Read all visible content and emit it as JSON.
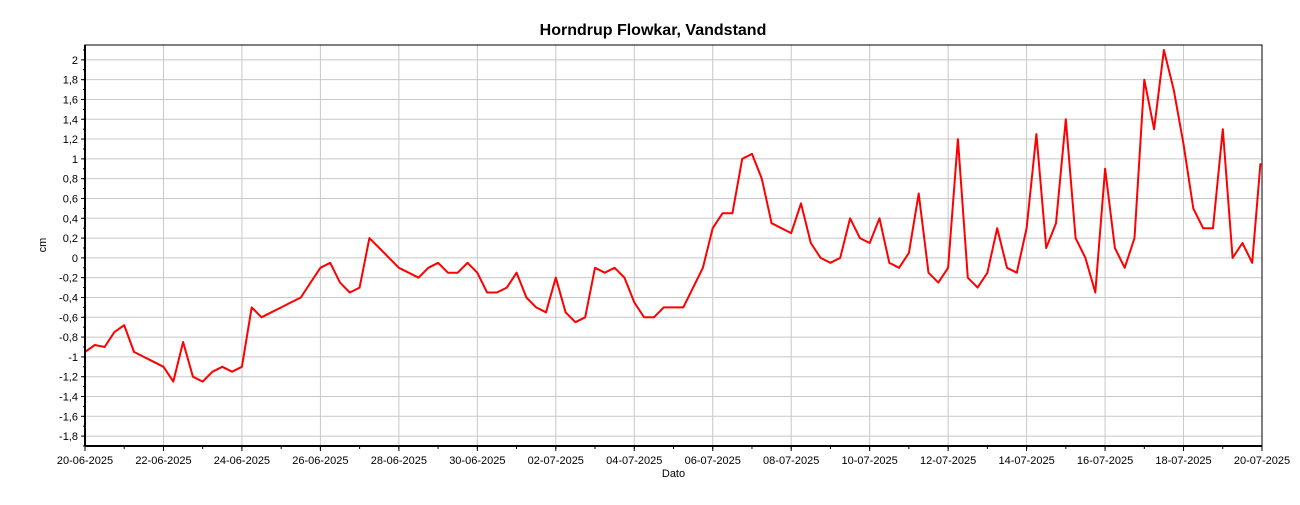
{
  "chart_data": {
    "type": "line",
    "title": "Horndrup Flowkar, Vandstand",
    "xlabel": "Dato",
    "ylabel": "cm",
    "ylim": [
      -1.9,
      2.15
    ],
    "xlim": [
      "2025-06-20",
      "2025-07-20"
    ],
    "grid": true,
    "legend": "none",
    "yticks": [
      "2",
      "1,8",
      "1,6",
      "1,4",
      "1,2",
      "1",
      "0,8",
      "0,6",
      "0,4",
      "0,2",
      "0",
      "-0,2",
      "-0,4",
      "-0,6",
      "-0,8",
      "-1",
      "-1,2",
      "-1,4",
      "-1,6",
      "-1,8"
    ],
    "xticks": [
      "20-06-2025",
      "22-06-2025",
      "24-06-2025",
      "26-06-2025",
      "28-06-2025",
      "30-06-2025",
      "02-07-2025",
      "04-07-2025",
      "06-07-2025",
      "08-07-2025",
      "10-07-2025",
      "12-07-2025",
      "14-07-2025",
      "16-07-2025",
      "18-07-2025",
      "20-07-2025"
    ],
    "series": [
      {
        "color": "#ff0000",
        "points": [
          [
            "2025-06-20 00:00",
            -0.95
          ],
          [
            "2025-06-20 06:00",
            -0.88
          ],
          [
            "2025-06-20 12:00",
            -0.9
          ],
          [
            "2025-06-20 18:00",
            -0.75
          ],
          [
            "2025-06-21 00:00",
            -0.68
          ],
          [
            "2025-06-21 06:00",
            -0.95
          ],
          [
            "2025-06-21 12:00",
            -1.0
          ],
          [
            "2025-06-21 18:00",
            -1.05
          ],
          [
            "2025-06-22 00:00",
            -1.1
          ],
          [
            "2025-06-22 06:00",
            -1.25
          ],
          [
            "2025-06-22 12:00",
            -0.85
          ],
          [
            "2025-06-22 18:00",
            -1.2
          ],
          [
            "2025-06-23 00:00",
            -1.25
          ],
          [
            "2025-06-23 06:00",
            -1.15
          ],
          [
            "2025-06-23 12:00",
            -1.1
          ],
          [
            "2025-06-23 18:00",
            -1.15
          ],
          [
            "2025-06-24 00:00",
            -1.1
          ],
          [
            "2025-06-24 06:00",
            -0.5
          ],
          [
            "2025-06-24 12:00",
            -0.6
          ],
          [
            "2025-06-24 18:00",
            -0.55
          ],
          [
            "2025-06-25 00:00",
            -0.5
          ],
          [
            "2025-06-25 06:00",
            -0.45
          ],
          [
            "2025-06-25 12:00",
            -0.4
          ],
          [
            "2025-06-25 18:00",
            -0.25
          ],
          [
            "2025-06-26 00:00",
            -0.1
          ],
          [
            "2025-06-26 06:00",
            -0.05
          ],
          [
            "2025-06-26 12:00",
            -0.25
          ],
          [
            "2025-06-26 18:00",
            -0.35
          ],
          [
            "2025-06-27 00:00",
            -0.3
          ],
          [
            "2025-06-27 06:00",
            0.2
          ],
          [
            "2025-06-27 12:00",
            0.1
          ],
          [
            "2025-06-27 18:00",
            0.0
          ],
          [
            "2025-06-28 00:00",
            -0.1
          ],
          [
            "2025-06-28 06:00",
            -0.15
          ],
          [
            "2025-06-28 12:00",
            -0.2
          ],
          [
            "2025-06-28 18:00",
            -0.1
          ],
          [
            "2025-06-29 00:00",
            -0.05
          ],
          [
            "2025-06-29 06:00",
            -0.15
          ],
          [
            "2025-06-29 12:00",
            -0.15
          ],
          [
            "2025-06-29 18:00",
            -0.05
          ],
          [
            "2025-06-30 00:00",
            -0.15
          ],
          [
            "2025-06-30 06:00",
            -0.35
          ],
          [
            "2025-06-30 12:00",
            -0.35
          ],
          [
            "2025-06-30 18:00",
            -0.3
          ],
          [
            "2025-07-01 00:00",
            -0.15
          ],
          [
            "2025-07-01 06:00",
            -0.4
          ],
          [
            "2025-07-01 12:00",
            -0.5
          ],
          [
            "2025-07-01 18:00",
            -0.55
          ],
          [
            "2025-07-02 00:00",
            -0.2
          ],
          [
            "2025-07-02 06:00",
            -0.55
          ],
          [
            "2025-07-02 12:00",
            -0.65
          ],
          [
            "2025-07-02 18:00",
            -0.6
          ],
          [
            "2025-07-03 00:00",
            -0.1
          ],
          [
            "2025-07-03 06:00",
            -0.15
          ],
          [
            "2025-07-03 12:00",
            -0.1
          ],
          [
            "2025-07-03 18:00",
            -0.2
          ],
          [
            "2025-07-04 00:00",
            -0.45
          ],
          [
            "2025-07-04 06:00",
            -0.6
          ],
          [
            "2025-07-04 12:00",
            -0.6
          ],
          [
            "2025-07-04 18:00",
            -0.5
          ],
          [
            "2025-07-05 00:00",
            -0.5
          ],
          [
            "2025-07-05 06:00",
            -0.5
          ],
          [
            "2025-07-05 12:00",
            -0.3
          ],
          [
            "2025-07-05 18:00",
            -0.1
          ],
          [
            "2025-07-06 00:00",
            0.3
          ],
          [
            "2025-07-06 06:00",
            0.45
          ],
          [
            "2025-07-06 12:00",
            0.45
          ],
          [
            "2025-07-06 18:00",
            1.0
          ],
          [
            "2025-07-07 00:00",
            1.05
          ],
          [
            "2025-07-07 06:00",
            0.8
          ],
          [
            "2025-07-07 12:00",
            0.35
          ],
          [
            "2025-07-07 18:00",
            0.3
          ],
          [
            "2025-07-08 00:00",
            0.25
          ],
          [
            "2025-07-08 06:00",
            0.55
          ],
          [
            "2025-07-08 12:00",
            0.15
          ],
          [
            "2025-07-08 18:00",
            0.0
          ],
          [
            "2025-07-09 00:00",
            -0.05
          ],
          [
            "2025-07-09 06:00",
            0.0
          ],
          [
            "2025-07-09 12:00",
            0.4
          ],
          [
            "2025-07-09 18:00",
            0.2
          ],
          [
            "2025-07-10 00:00",
            0.15
          ],
          [
            "2025-07-10 06:00",
            0.4
          ],
          [
            "2025-07-10 12:00",
            -0.05
          ],
          [
            "2025-07-10 18:00",
            -0.1
          ],
          [
            "2025-07-11 00:00",
            0.05
          ],
          [
            "2025-07-11 06:00",
            0.65
          ],
          [
            "2025-07-11 12:00",
            -0.15
          ],
          [
            "2025-07-11 18:00",
            -0.25
          ],
          [
            "2025-07-12 00:00",
            -0.1
          ],
          [
            "2025-07-12 06:00",
            1.2
          ],
          [
            "2025-07-12 12:00",
            -0.2
          ],
          [
            "2025-07-12 18:00",
            -0.3
          ],
          [
            "2025-07-13 00:00",
            -0.15
          ],
          [
            "2025-07-13 06:00",
            0.3
          ],
          [
            "2025-07-13 12:00",
            -0.1
          ],
          [
            "2025-07-13 18:00",
            -0.15
          ],
          [
            "2025-07-14 00:00",
            0.3
          ],
          [
            "2025-07-14 06:00",
            1.25
          ],
          [
            "2025-07-14 12:00",
            0.1
          ],
          [
            "2025-07-14 18:00",
            0.35
          ],
          [
            "2025-07-15 00:00",
            1.4
          ],
          [
            "2025-07-15 06:00",
            0.2
          ],
          [
            "2025-07-15 12:00",
            0.0
          ],
          [
            "2025-07-15 18:00",
            -0.35
          ],
          [
            "2025-07-16 00:00",
            0.9
          ],
          [
            "2025-07-16 06:00",
            0.1
          ],
          [
            "2025-07-16 12:00",
            -0.1
          ],
          [
            "2025-07-16 18:00",
            0.2
          ],
          [
            "2025-07-17 00:00",
            1.8
          ],
          [
            "2025-07-17 06:00",
            1.3
          ],
          [
            "2025-07-17 12:00",
            2.1
          ],
          [
            "2025-07-17 18:00",
            1.7
          ],
          [
            "2025-07-18 00:00",
            1.15
          ],
          [
            "2025-07-18 06:00",
            0.5
          ],
          [
            "2025-07-18 12:00",
            0.3
          ],
          [
            "2025-07-18 18:00",
            0.3
          ],
          [
            "2025-07-19 00:00",
            1.3
          ],
          [
            "2025-07-19 06:00",
            0.0
          ],
          [
            "2025-07-19 12:00",
            0.15
          ],
          [
            "2025-07-19 18:00",
            -0.05
          ],
          [
            "2025-07-19 23:00",
            0.95
          ]
        ]
      }
    ]
  }
}
